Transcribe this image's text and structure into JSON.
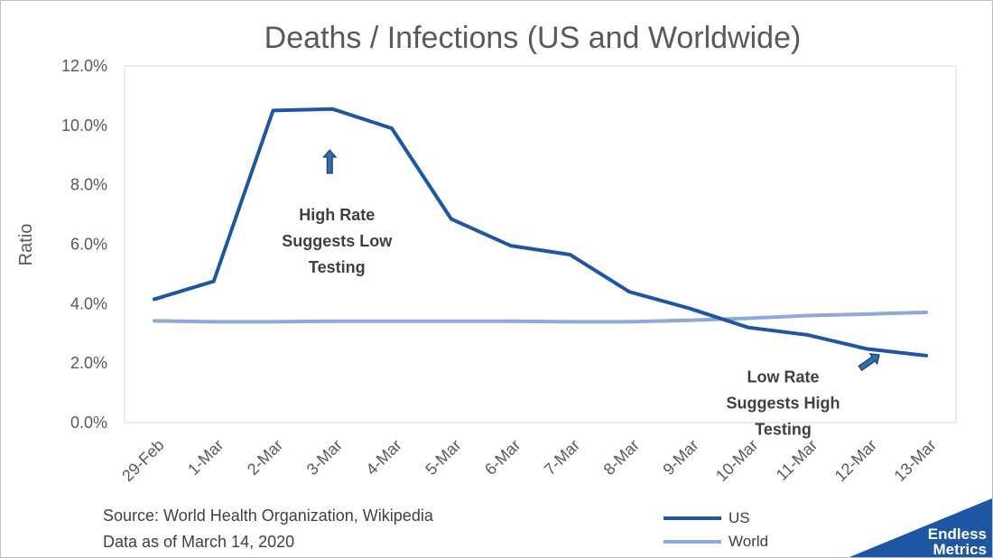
{
  "chart_data": {
    "type": "line",
    "title": "Deaths / Infections (US and Worldwide)",
    "xlabel": "",
    "ylabel": "Ratio",
    "categories": [
      "29-Feb",
      "1-Mar",
      "2-Mar",
      "3-Mar",
      "4-Mar",
      "5-Mar",
      "6-Mar",
      "7-Mar",
      "8-Mar",
      "9-Mar",
      "10-Mar",
      "11-Mar",
      "12-Mar",
      "13-Mar"
    ],
    "ylim": [
      0,
      0.12
    ],
    "yticks": [
      0,
      0.02,
      0.04,
      0.06,
      0.08,
      0.1,
      0.12
    ],
    "ytick_labels": [
      "0.0%",
      "2.0%",
      "4.0%",
      "6.0%",
      "8.0%",
      "10.0%",
      "12.0%"
    ],
    "grid": false,
    "legend_position": "bottom-right",
    "series": [
      {
        "name": "US",
        "color": "#1f56a3",
        "values": [
          0.0415,
          0.0475,
          0.105,
          0.1055,
          0.099,
          0.0685,
          0.0595,
          0.0565,
          0.044,
          0.0385,
          0.032,
          0.0295,
          0.0248,
          0.0225
        ]
      },
      {
        "name": "World",
        "color": "#8eaadb",
        "values": [
          0.0342,
          0.0339,
          0.0339,
          0.0341,
          0.0341,
          0.0341,
          0.0341,
          0.0339,
          0.0339,
          0.0344,
          0.0351,
          0.036,
          0.0365,
          0.0371
        ]
      }
    ],
    "annotations": [
      {
        "lines": [
          "High Rate",
          "Suggests Low",
          "Testing"
        ],
        "near_category": "3-Mar",
        "near_value": 0.065,
        "arrow": "up"
      },
      {
        "lines": [
          "Low Rate",
          "Suggests High",
          "Testing"
        ],
        "near_category": "11-Mar",
        "near_value": 0.016,
        "arrow": "up-right"
      }
    ]
  },
  "source": {
    "line1": "Source: World Health Organization, Wikipedia",
    "line2": "Data as of March 14, 2020"
  },
  "logo": {
    "line1": "Endless",
    "line2": "Metrics",
    "color": "#1f56a3"
  },
  "colors": {
    "us_line": "#1f56a3",
    "world_line": "#8eaadb",
    "arrow_fill": "#2e6db4",
    "arrow_stroke": "#1a2f4f"
  }
}
